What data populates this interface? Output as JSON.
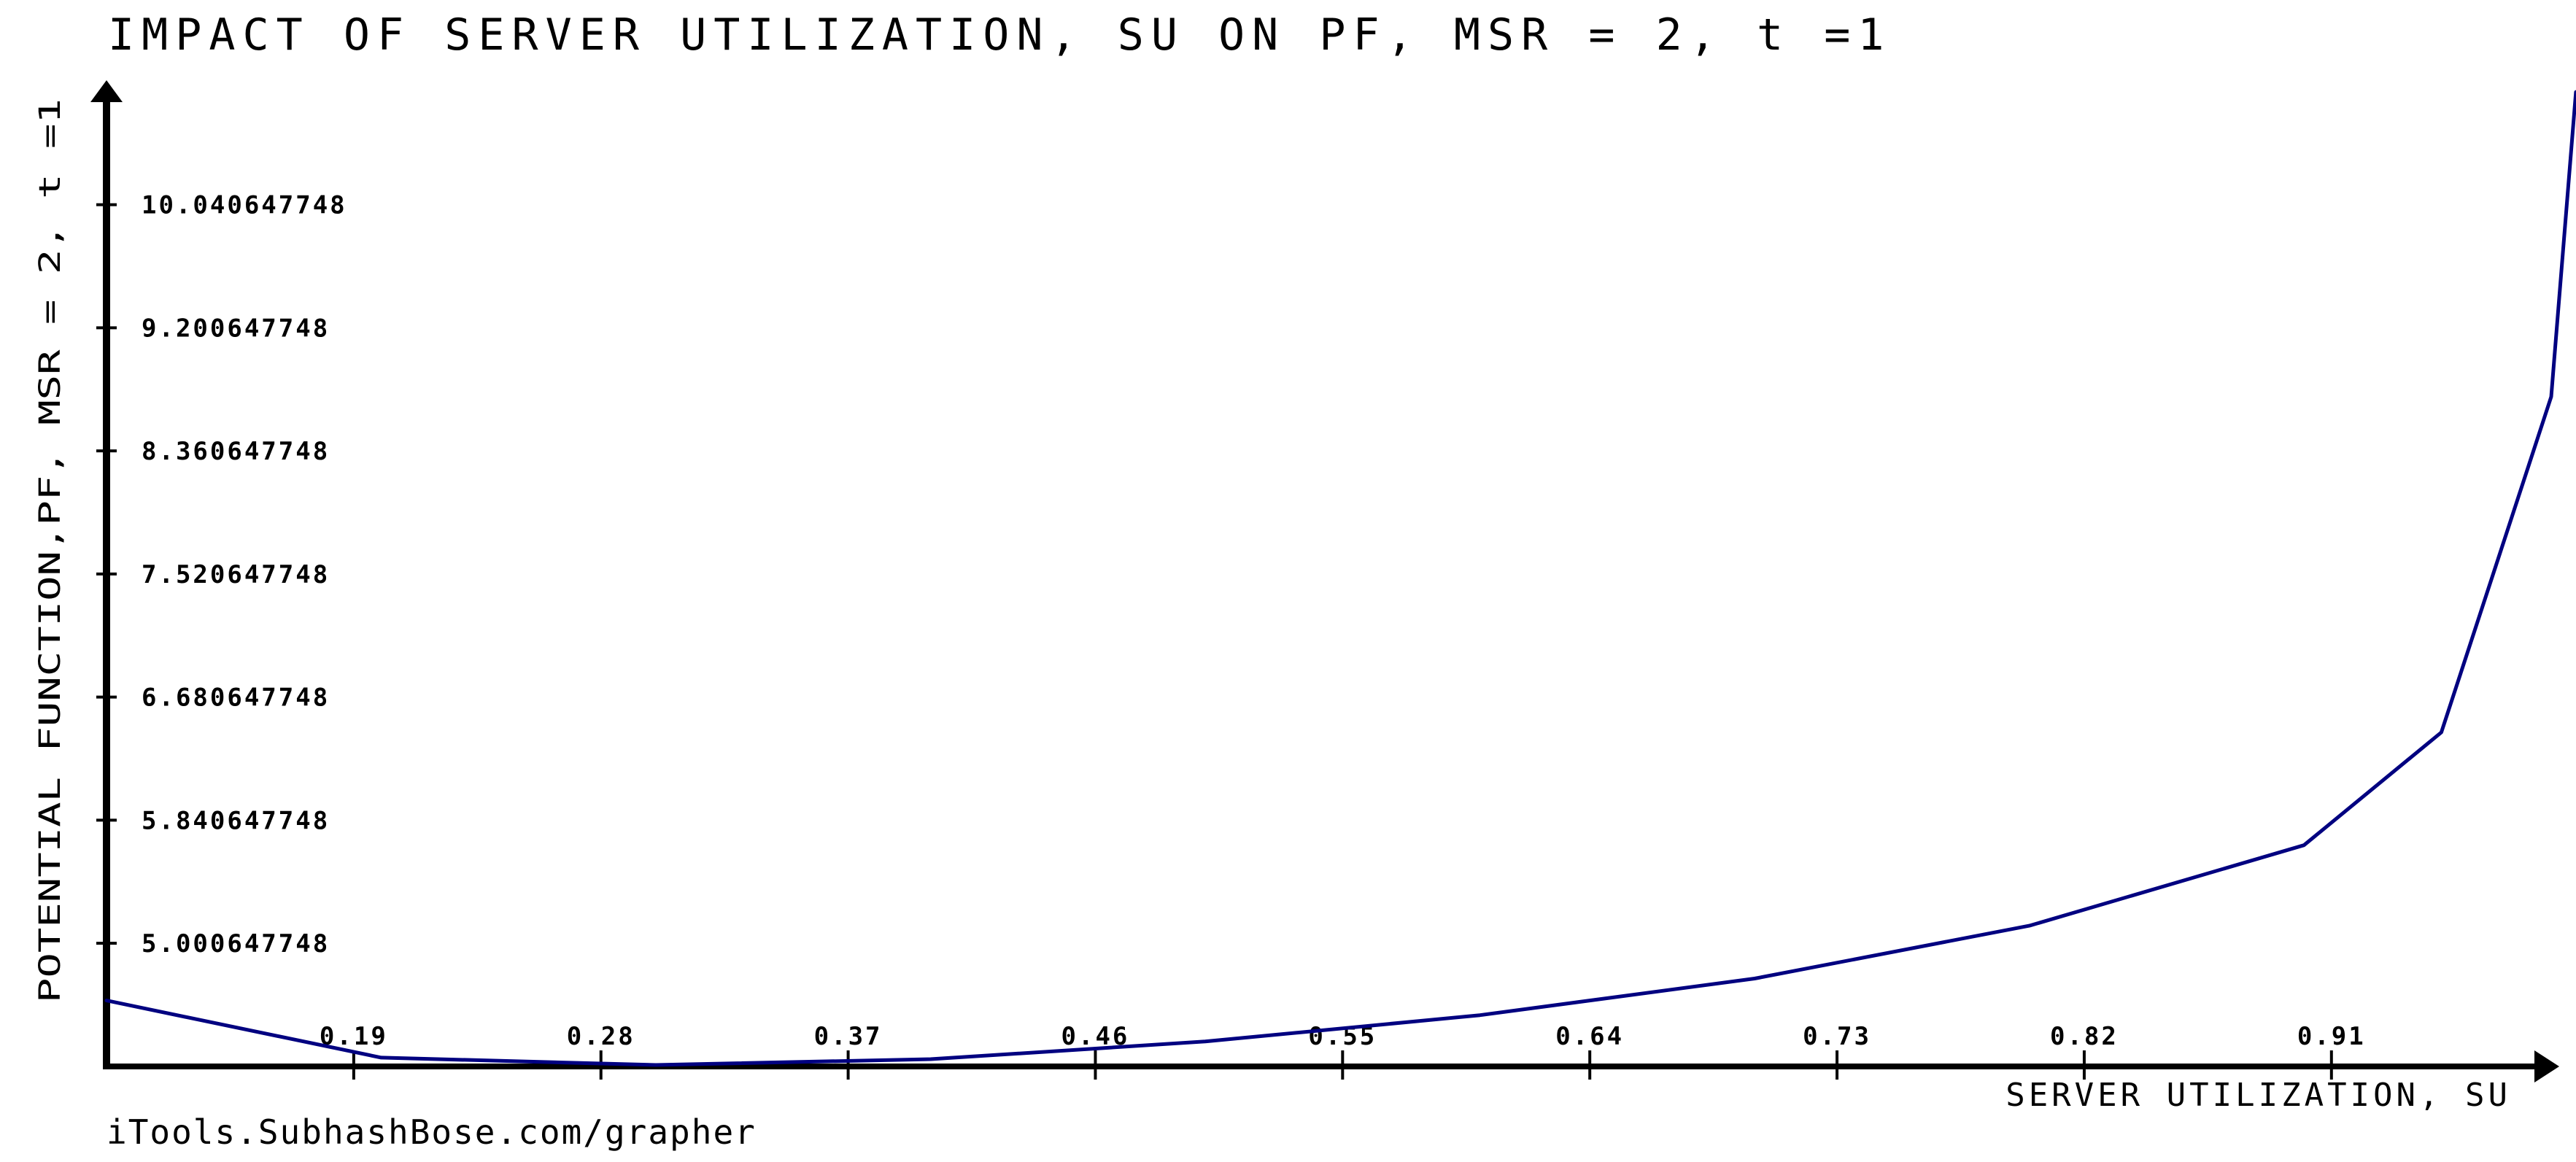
{
  "chart_data": {
    "type": "line",
    "title": "IMPACT OF SERVER UTILIZATION, SU ON PF, MSR = 2, t =1",
    "xlabel": "SERVER UTILIZATION, SU",
    "ylabel": "POTENTIAL FUNCTION,PF, MSR = 2, t =1",
    "x_ticks": [
      "0.19",
      "0.28",
      "0.37",
      "0.46",
      "0.55",
      "0.64",
      "0.73",
      "0.82",
      "0.91"
    ],
    "y_ticks": [
      "5.000647748",
      "5.840647748",
      "6.680647748",
      "7.520647748",
      "8.360647748",
      "9.200647748",
      "10.040647748"
    ],
    "xlim": [
      0.1,
      0.99
    ],
    "ylim": [
      4.16,
      10.88
    ],
    "grid": false,
    "legend": "none",
    "series": [
      {
        "color": "#000080",
        "x": [
          0.1,
          0.2,
          0.3,
          0.4,
          0.5,
          0.6,
          0.7,
          0.8,
          0.9,
          0.95,
          0.99,
          0.999
        ],
        "y": [
          4.61,
          4.22,
          4.17,
          4.21,
          4.33,
          4.51,
          4.76,
          5.12,
          5.67,
          6.44,
          8.73,
          10.81
        ]
      }
    ]
  },
  "credit": "iTools.SubhashBose.com/grapher",
  "colors": {
    "axis": "#000000",
    "line": "#000080",
    "background": "#ffffff"
  }
}
